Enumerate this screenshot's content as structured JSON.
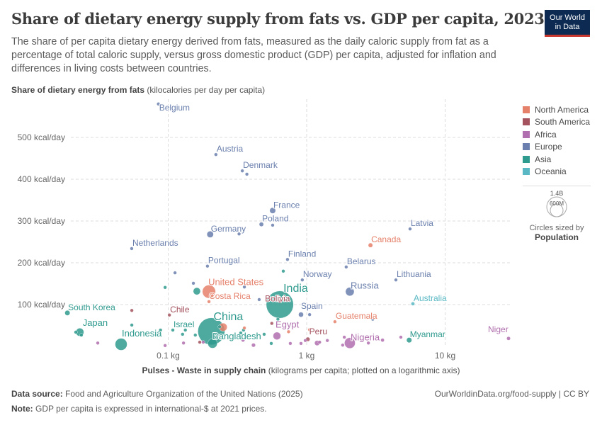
{
  "header": {
    "title": "Share of dietary energy supply from fats vs. GDP per capita, 2023",
    "subtitle": "The share of per capita dietary energy derived from fats, measured as the daily caloric supply from fat as a percentage of total caloric supply, versus gross domestic product (GDP) per capita, adjusted for inflation and differences in living costs between countries.",
    "logo": [
      "Our World",
      "in Data"
    ]
  },
  "footer": {
    "source_label": "Data source:",
    "source": "Food and Agriculture Organization of the United Nations (2025)",
    "note_label": "Note:",
    "note": "GDP per capita is expressed in international-$ at 2021 prices.",
    "link": "OurWorldinData.org/food-supply | CC BY"
  },
  "size_legend": {
    "big": "1.4B",
    "small": "600M",
    "caption": "Circles sized by",
    "variable": "Population"
  },
  "chart_data": {
    "type": "scatter",
    "title": "Share of dietary energy supply from fats vs. GDP per capita, 2023",
    "ylabel_bold": "Share of dietary energy from fats",
    "ylabel_rest": "(kilocalories per day per capita)",
    "xlabel_bold": "Pulses - Waste in supply chain",
    "xlabel_rest": "(kilograms per capita; plotted on a logarithmic axis)",
    "x_scale": "log",
    "xlim": [
      0.015,
      32
    ],
    "ylim": [
      0,
      590
    ],
    "x_ticks": [
      {
        "v": 0.1,
        "label": "0.1 kg"
      },
      {
        "v": 1,
        "label": "1 kg"
      },
      {
        "v": 10,
        "label": "10 kg"
      }
    ],
    "y_ticks": [
      {
        "v": 100,
        "label": "100 kcal/day"
      },
      {
        "v": 200,
        "label": "200 kcal/day"
      },
      {
        "v": 300,
        "label": "300 kcal/day"
      },
      {
        "v": 400,
        "label": "400 kcal/day"
      },
      {
        "v": 500,
        "label": "500 kcal/day"
      }
    ],
    "grid": true,
    "legend_position": "right",
    "colors": {
      "North America": "#e5806a",
      "South America": "#a3525e",
      "Africa": "#b06fae",
      "Europe": "#6a7fad",
      "Asia": "#2f9a8e",
      "Oceania": "#5ab8c4"
    },
    "legend": [
      "North America",
      "South America",
      "Africa",
      "Europe",
      "Asia",
      "Oceania"
    ],
    "points": [
      {
        "name": "Belgium",
        "x": 0.085,
        "y": 580,
        "c": "Europe",
        "pop": 12
      },
      {
        "name": "Austria",
        "x": 0.221,
        "y": 459,
        "c": "Europe",
        "pop": 9
      },
      {
        "name": "Denmark",
        "x": 0.343,
        "y": 420,
        "c": "Europe",
        "pop": 6
      },
      {
        "x": 0.37,
        "y": 412,
        "c": "Europe",
        "pop": 5
      },
      {
        "name": "France",
        "x": 0.568,
        "y": 325,
        "c": "Europe",
        "pop": 68
      },
      {
        "name": "Poland",
        "x": 0.471,
        "y": 292,
        "c": "Europe",
        "pop": 37
      },
      {
        "x": 0.568,
        "y": 290,
        "c": "Europe",
        "pop": 5
      },
      {
        "name": "Germany",
        "x": 0.201,
        "y": 268,
        "c": "Europe",
        "pop": 84
      },
      {
        "x": 0.325,
        "y": 269,
        "c": "Europe",
        "pop": 5
      },
      {
        "name": "Netherlands",
        "x": 0.0545,
        "y": 234,
        "c": "Europe",
        "pop": 18
      },
      {
        "name": "Portugal",
        "x": 0.192,
        "y": 192,
        "c": "Europe",
        "pop": 10
      },
      {
        "name": "Finland",
        "x": 0.727,
        "y": 208,
        "c": "Europe",
        "pop": 6
      },
      {
        "name": "United States",
        "x": 0.197,
        "y": 131,
        "c": "North America",
        "pop": 335
      },
      {
        "name": "Costa Rica",
        "x": 0.197,
        "y": 107,
        "c": "North America",
        "pop": 5
      },
      {
        "name": "India",
        "x": 0.64,
        "y": 100,
        "c": "Asia",
        "pop": 1430
      },
      {
        "name": "Bolivia",
        "x": 0.64,
        "y": 108,
        "c": "South America",
        "pop": 12
      },
      {
        "name": "Norway",
        "x": 0.93,
        "y": 159,
        "c": "Europe",
        "pop": 5
      },
      {
        "name": "Spain",
        "x": 0.91,
        "y": 76,
        "c": "Europe",
        "pop": 48
      },
      {
        "x": 1.05,
        "y": 76,
        "c": "Europe",
        "pop": 5
      },
      {
        "name": "Belarus",
        "x": 1.93,
        "y": 190,
        "c": "Europe",
        "pop": 9
      },
      {
        "name": "Latvia",
        "x": 5.58,
        "y": 281,
        "c": "Europe",
        "pop": 2
      },
      {
        "name": "Canada",
        "x": 2.89,
        "y": 242,
        "c": "North America",
        "pop": 39
      },
      {
        "name": "Lithuania",
        "x": 4.41,
        "y": 159,
        "c": "Europe",
        "pop": 3
      },
      {
        "name": "Russia",
        "x": 2.05,
        "y": 131,
        "c": "Europe",
        "pop": 144
      },
      {
        "name": "Australia",
        "x": 5.85,
        "y": 102,
        "c": "Oceania",
        "pop": 26
      },
      {
        "name": "Guatemala",
        "x": 1.6,
        "y": 59,
        "c": "North America",
        "pop": 18
      },
      {
        "name": "Peru",
        "x": 1.02,
        "y": 17,
        "c": "South America",
        "pop": 34
      },
      {
        "name": "Nigeria",
        "x": 2.05,
        "y": 8,
        "c": "Africa",
        "pop": 224
      },
      {
        "name": "Myanmar",
        "x": 5.5,
        "y": 15,
        "c": "Asia",
        "pop": 54
      },
      {
        "name": "Niger",
        "x": 28.7,
        "y": 19,
        "c": "Africa",
        "pop": 27
      },
      {
        "name": "Egypt",
        "x": 0.61,
        "y": 25,
        "c": "Africa",
        "pop": 113
      },
      {
        "name": "China",
        "x": 0.205,
        "y": 36,
        "c": "Asia",
        "pop": 1410
      },
      {
        "name": "Bangladesh",
        "x": 0.209,
        "y": 7,
        "c": "Asia",
        "pop": 173
      },
      {
        "x": 0.249,
        "y": 46,
        "c": "North America",
        "pop": 128
      },
      {
        "name": "Japan",
        "x": 0.023,
        "y": 34,
        "c": "Asia",
        "pop": 124
      },
      {
        "x": 0.0215,
        "y": 34,
        "c": "Asia",
        "pop": 20
      },
      {
        "x": 0.0236,
        "y": 27,
        "c": "Asia",
        "pop": 10
      },
      {
        "name": "South Korea",
        "x": 0.0187,
        "y": 80,
        "c": "Asia",
        "pop": 52
      },
      {
        "name": "Indonesia",
        "x": 0.0457,
        "y": 5,
        "c": "Asia",
        "pop": 277
      },
      {
        "name": "Israel",
        "x": 0.108,
        "y": 39,
        "c": "Asia",
        "pop": 10
      },
      {
        "name": "Chile",
        "x": 0.102,
        "y": 75,
        "c": "South America",
        "pop": 20
      },
      {
        "x": 0.095,
        "y": 141,
        "c": "Asia",
        "pop": 5
      },
      {
        "x": 0.112,
        "y": 176,
        "c": "Europe",
        "pop": 5
      },
      {
        "x": 0.152,
        "y": 151,
        "c": "Europe",
        "pop": 20
      },
      {
        "x": 0.161,
        "y": 132,
        "c": "Asia",
        "pop": 100
      },
      {
        "x": 0.355,
        "y": 142,
        "c": "Europe",
        "pop": 5
      },
      {
        "x": 0.454,
        "y": 112,
        "c": "Europe",
        "pop": 5
      },
      {
        "x": 0.678,
        "y": 180,
        "c": "Asia",
        "pop": 5
      },
      {
        "x": 0.0546,
        "y": 86,
        "c": "South America",
        "pop": 5
      },
      {
        "x": 0.031,
        "y": 8,
        "c": "Africa",
        "pop": 20
      },
      {
        "x": 0.095,
        "y": 2,
        "c": "Africa",
        "pop": 12
      },
      {
        "x": 0.129,
        "y": 8,
        "c": "Africa",
        "pop": 15
      },
      {
        "x": 0.179,
        "y": 10,
        "c": "Africa",
        "pop": 8
      },
      {
        "x": 0.347,
        "y": 15,
        "c": "Africa",
        "pop": 25
      },
      {
        "x": 0.413,
        "y": 3,
        "c": "Africa",
        "pop": 30
      },
      {
        "x": 0.762,
        "y": 7,
        "c": "Africa",
        "pop": 12
      },
      {
        "x": 0.91,
        "y": 7,
        "c": "Africa",
        "pop": 20
      },
      {
        "x": 0.977,
        "y": 14,
        "c": "Africa",
        "pop": 10
      },
      {
        "x": 1.19,
        "y": 8,
        "c": "Africa",
        "pop": 50
      },
      {
        "x": 1.24,
        "y": 10,
        "c": "Africa",
        "pop": 12
      },
      {
        "x": 1.41,
        "y": 14,
        "c": "Africa",
        "pop": 8
      },
      {
        "x": 1.82,
        "y": 3,
        "c": "Africa",
        "pop": 6
      },
      {
        "x": 2.79,
        "y": 8,
        "c": "Africa",
        "pop": 6
      },
      {
        "x": 3.53,
        "y": 15,
        "c": "Africa",
        "pop": 25
      },
      {
        "x": 4.79,
        "y": 22,
        "c": "Africa",
        "pop": 6
      },
      {
        "x": 1.87,
        "y": 22,
        "c": "Africa",
        "pop": 6
      },
      {
        "x": 0.157,
        "y": 27,
        "c": "Asia",
        "pop": 20
      },
      {
        "x": 0.169,
        "y": 10,
        "c": "South America",
        "pop": 12
      },
      {
        "x": 0.235,
        "y": 47,
        "c": "Asia",
        "pop": 15
      },
      {
        "x": 0.334,
        "y": 32,
        "c": "Asia",
        "pop": 10
      },
      {
        "x": 0.35,
        "y": 39,
        "c": "Asia",
        "pop": 6
      },
      {
        "x": 0.493,
        "y": 29,
        "c": "Asia",
        "pop": 6
      },
      {
        "x": 0.555,
        "y": 7,
        "c": "Asia",
        "pop": 6
      },
      {
        "x": 0.127,
        "y": 29,
        "c": "Asia",
        "pop": 5
      },
      {
        "x": 0.133,
        "y": 39,
        "c": "Asia",
        "pop": 5
      },
      {
        "x": 0.088,
        "y": 39,
        "c": "Asia",
        "pop": 5
      },
      {
        "x": 0.0546,
        "y": 51,
        "c": "Asia",
        "pop": 5
      },
      {
        "x": 0.355,
        "y": 44,
        "c": "North America",
        "pop": 5
      },
      {
        "x": 1.05,
        "y": 40,
        "c": "North America",
        "pop": 5
      },
      {
        "x": 0.62,
        "y": 65,
        "c": "Asia",
        "pop": 20
      },
      {
        "x": 0.56,
        "y": 55,
        "c": "South America",
        "pop": 8
      },
      {
        "x": 0.74,
        "y": 35,
        "c": "North America",
        "pop": 5
      },
      {
        "x": 3.0,
        "y": 65,
        "c": "Europe",
        "pop": 3
      }
    ]
  }
}
